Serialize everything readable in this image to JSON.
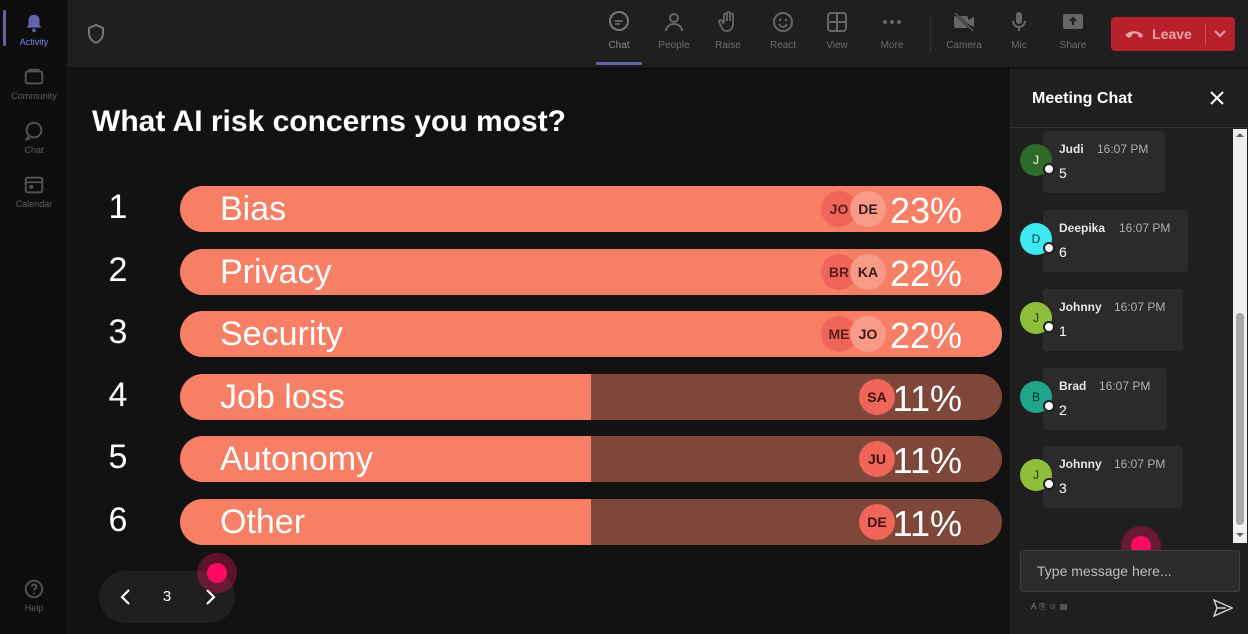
{
  "rail": {
    "items": [
      {
        "label": "Activity",
        "icon": "bell-icon",
        "active": true
      },
      {
        "label": "Community",
        "icon": "community-icon",
        "active": false
      },
      {
        "label": "Chat",
        "icon": "chat-icon",
        "active": false
      },
      {
        "label": "Calendar",
        "icon": "calendar-icon",
        "active": false
      }
    ],
    "help": {
      "label": "Help",
      "icon": "help-icon"
    }
  },
  "toolbar": {
    "buttons": [
      {
        "label": "Chat",
        "icon": "chat-bubble-icon",
        "active": true
      },
      {
        "label": "People",
        "icon": "people-icon",
        "active": false
      },
      {
        "label": "Raise",
        "icon": "hand-icon",
        "active": false
      },
      {
        "label": "React",
        "icon": "smiley-icon",
        "active": false
      },
      {
        "label": "View",
        "icon": "grid-icon",
        "active": false
      },
      {
        "label": "More",
        "icon": "ellipsis-icon",
        "active": false
      },
      {
        "label": "Camera",
        "icon": "camera-off-icon",
        "active": false
      },
      {
        "label": "Mic",
        "icon": "mic-icon",
        "active": false
      },
      {
        "label": "Share",
        "icon": "share-icon",
        "active": false
      }
    ],
    "leave_label": "Leave"
  },
  "poll": {
    "question": "What AI risk concerns you most?",
    "options": [
      {
        "rank": "1",
        "label": "Bias",
        "percent": "23%",
        "fill": 1.0,
        "avatars": [
          "JO",
          "DE"
        ]
      },
      {
        "rank": "2",
        "label": "Privacy",
        "percent": "22%",
        "fill": 1.0,
        "avatars": [
          "BR",
          "KA"
        ]
      },
      {
        "rank": "3",
        "label": "Security",
        "percent": "22%",
        "fill": 1.0,
        "avatars": [
          "ME",
          "JO"
        ]
      },
      {
        "rank": "4",
        "label": "Job loss",
        "percent": "11%",
        "fill": 0.5,
        "avatars": [
          "SA"
        ]
      },
      {
        "rank": "5",
        "label": "Autonomy",
        "percent": "11%",
        "fill": 0.5,
        "avatars": [
          "JU"
        ]
      },
      {
        "rank": "6",
        "label": "Other",
        "percent": "11%",
        "fill": 0.5,
        "avatars": [
          "DE"
        ]
      }
    ],
    "page": "3"
  },
  "chat": {
    "title": "Meeting Chat",
    "messages": [
      {
        "initial": "J",
        "name": "Judi",
        "time": "16:07 PM",
        "text": "5",
        "color": "#2e6b2a",
        "text_color": "#ffffff"
      },
      {
        "initial": "D",
        "name": "Deepika",
        "time": "16:07 PM",
        "text": "6",
        "color": "#3de8f0",
        "text_color": "#0a3a3c"
      },
      {
        "initial": "J",
        "name": "Johnny",
        "time": "16:07 PM",
        "text": "1",
        "color": "#8fbf3a",
        "text_color": "#1e3008"
      },
      {
        "initial": "B",
        "name": "Brad",
        "time": "16:07 PM",
        "text": "2",
        "color": "#1fa58a",
        "text_color": "#0a2e26"
      },
      {
        "initial": "J",
        "name": "Johnny",
        "time": "16:07 PM",
        "text": "3",
        "color": "#8fbf3a",
        "text_color": "#1e3008"
      }
    ],
    "input_placeholder": "Type message here..."
  },
  "colors": {
    "bar_fill": "#f77f65",
    "bar_track": "#7f463a",
    "leave": "#b8202c",
    "accent": "#6264a7"
  }
}
